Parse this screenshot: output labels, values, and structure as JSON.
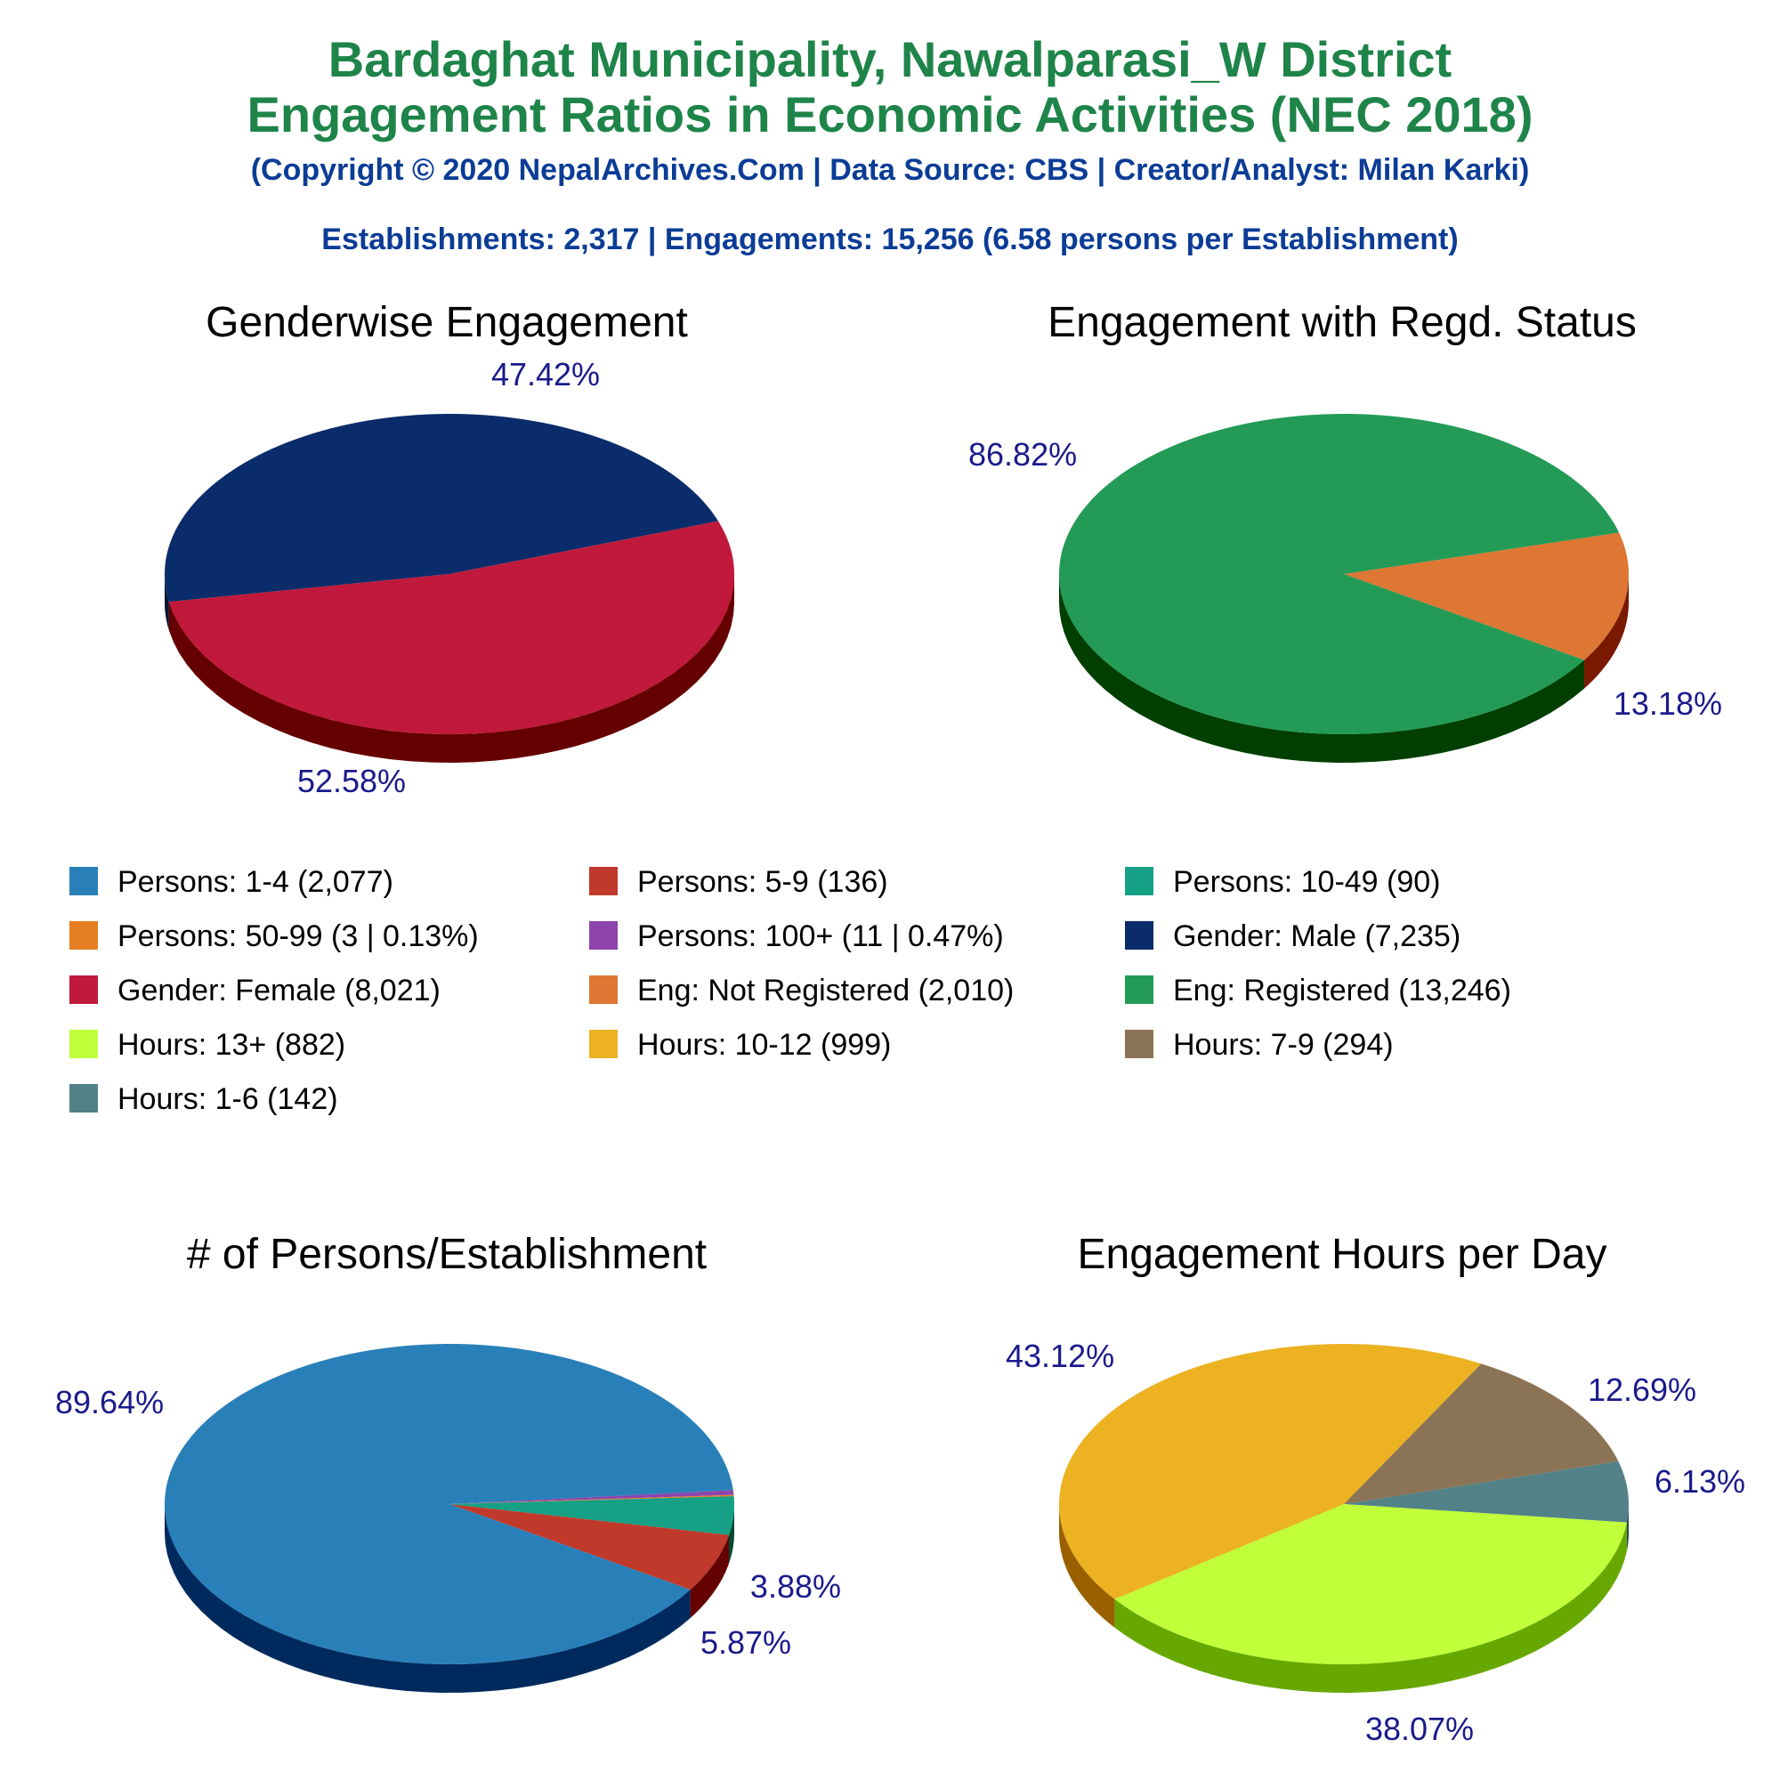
{
  "header": {
    "title_line1": "Bardaghat Municipality, Nawalparasi_W District",
    "title_line2": "Engagement Ratios in Economic Activities (NEC 2018)",
    "copyright": "(Copyright © 2020 NepalArchives.Com | Data Source: CBS | Creator/Analyst: Milan Karki)",
    "summary": "Establishments: 2,317 | Engagements: 15,256 (6.58 persons per Establishment)"
  },
  "legend": {
    "items": [
      {
        "label": "Persons: 1-4 (2,077)",
        "color": "#2980b9"
      },
      {
        "label": "Persons: 5-9 (136)",
        "color": "#c0392b"
      },
      {
        "label": "Persons: 10-49 (90)",
        "color": "#16a085"
      },
      {
        "label": "Persons: 50-99 (3 | 0.13%)",
        "color": "#e67e22"
      },
      {
        "label": "Persons: 100+ (11 | 0.47%)",
        "color": "#8e44ad"
      },
      {
        "label": "Gender: Male (7,235)",
        "color": "#0b2c6a"
      },
      {
        "label": "Gender: Female (8,021)",
        "color": "#c0193b"
      },
      {
        "label": "Eng: Not Registered (2,010)",
        "color": "#dd7733"
      },
      {
        "label": "Eng: Registered (13,246)",
        "color": "#239b56"
      },
      {
        "label": "Hours: 13+ (882)",
        "color": "#c0ff3a"
      },
      {
        "label": "Hours: 10-12 (999)",
        "color": "#ecb221"
      },
      {
        "label": "Hours: 7-9 (294)",
        "color": "#8b7355"
      },
      {
        "label": "Hours: 1-6 (142)",
        "color": "#528287"
      }
    ]
  },
  "chart_data": [
    {
      "type": "pie",
      "title": "Genderwise Engagement",
      "slices": [
        {
          "value": 47.42,
          "label": "47.42%",
          "color": "#0b2c6a",
          "side": "#051536"
        },
        {
          "value": 52.58,
          "label": "52.58%",
          "color": "#c0193b",
          "side": "#650000"
        }
      ]
    },
    {
      "type": "pie",
      "title": "Engagement with Regd. Status",
      "slices": [
        {
          "value": 13.18,
          "label": "13.18%",
          "color": "#dd7733",
          "side": "#7a1800"
        },
        {
          "value": 86.82,
          "label": "86.82%",
          "color": "#239b56",
          "side": "#003f00"
        }
      ]
    },
    {
      "type": "pie",
      "title": "# of Persons/Establishment",
      "slices": [
        {
          "value": 0.47,
          "label": "",
          "color": "#8e44ad",
          "side": "#3e0a5a"
        },
        {
          "value": 0.13,
          "label": "",
          "color": "#e67e22",
          "side": "#7a3000"
        },
        {
          "value": 3.88,
          "label": "3.88%",
          "color": "#16a085",
          "side": "#004a30"
        },
        {
          "value": 5.87,
          "label": "5.87%",
          "color": "#c0392b",
          "side": "#650000"
        },
        {
          "value": 89.64,
          "label": "89.64%",
          "color": "#2980b9",
          "side": "#002a5e"
        }
      ]
    },
    {
      "type": "pie",
      "title": "Engagement Hours per Day",
      "slices": [
        {
          "value": 6.13,
          "label": "6.13%",
          "color": "#528287",
          "side": "#1e4a4f"
        },
        {
          "value": 38.07,
          "label": "38.07%",
          "color": "#c0ff3a",
          "side": "#67a800"
        },
        {
          "value": 43.12,
          "label": "43.12%",
          "color": "#ecb221",
          "side": "#9a6000"
        },
        {
          "value": 12.69,
          "label": "12.69%",
          "color": "#8b7355",
          "side": "#4a3a20"
        }
      ]
    }
  ]
}
